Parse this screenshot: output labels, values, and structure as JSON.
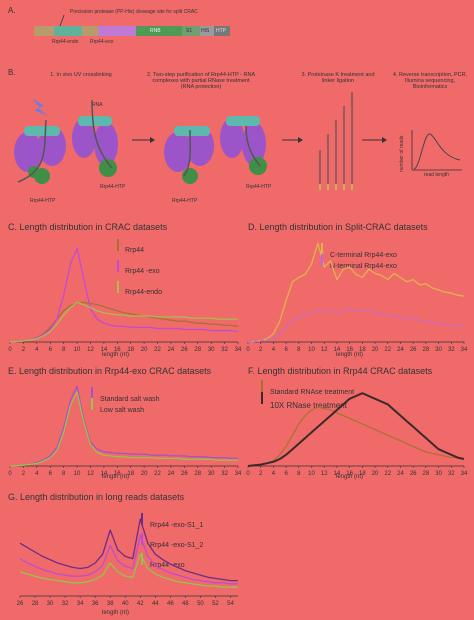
{
  "panel_a": {
    "label": "A.",
    "site_label": "Precission protease (PP-His) cleavage site for split CRAC",
    "domain_labels": [
      "Rrp44-endo",
      "Rrp44-exo",
      "RNB",
      "S1",
      "HIS",
      "HTP"
    ]
  },
  "panel_b": {
    "label": "B.",
    "steps": [
      "1. In vivo UV crosslinking",
      "2. Two-step purification of Rrp44-HTP - RNA complexes with partial RNase treatment (RNA protection)",
      "3. Proteinase K treatment and linker ligation",
      "4. Reverse transcription, PCR, Illumina sequencing, Bioinformatics"
    ],
    "rna_label": "RNA",
    "protein_label": "Rrp44-HTP",
    "uv_label": "UV",
    "axis_y": "number of reads",
    "axis_x": "read length"
  },
  "colors": {
    "background": "#f06a6a",
    "rrp44": "#a9702f",
    "rrp44_exo": "#c14bd2",
    "rrp44_endo": "#a6bf4d",
    "split_c": "#e0b24a",
    "split_n": "#b96adf",
    "standard": "#a651c9",
    "low_salt": "#98c24b",
    "ten_x": "#3c2a2a",
    "long_s1_1": "#6d2c8a",
    "long_s1_2": "#c14bd2",
    "long_exo": "#98c24b"
  },
  "chart_data": [
    {
      "id": "C",
      "type": "line",
      "title": "C. Length distribution in CRAC datasets",
      "xlabel": "length (nt)",
      "x_ticks": [
        "0",
        "2",
        "4",
        "6",
        "8",
        "10",
        "12",
        "14",
        "16",
        "18",
        "20",
        "22",
        "24",
        "26",
        "28",
        "30",
        "32",
        "34"
      ],
      "xlim": [
        0,
        34
      ],
      "x": [
        0,
        1,
        2,
        3,
        4,
        5,
        6,
        7,
        8,
        9,
        10,
        11,
        12,
        13,
        14,
        15,
        16,
        17,
        18,
        19,
        20,
        21,
        22,
        23,
        24,
        25,
        26,
        27,
        28,
        29,
        30,
        31,
        32,
        33,
        34
      ],
      "series": [
        {
          "name": "Rrp44",
          "values": [
            0,
            0.5,
            1,
            2,
            4,
            8,
            14,
            22,
            30,
            35,
            37,
            38,
            37,
            36,
            34,
            32,
            30,
            28,
            27,
            26,
            25,
            24,
            23,
            22,
            21,
            20,
            20,
            19,
            18,
            18,
            17,
            17,
            16,
            16,
            15
          ]
        },
        {
          "name": "Rrp44 -exo",
          "values": [
            0,
            0.5,
            1,
            2,
            4,
            7,
            12,
            22,
            45,
            75,
            90,
            60,
            32,
            22,
            18,
            16,
            15,
            15,
            14,
            14,
            14,
            14,
            13,
            13,
            13,
            13,
            12,
            12,
            12,
            12,
            11,
            11,
            11,
            11,
            10
          ]
        },
        {
          "name": "Rrp44-endo",
          "values": [
            0,
            0.5,
            1,
            2,
            3,
            6,
            10,
            17,
            26,
            33,
            38,
            36,
            33,
            30,
            28,
            27,
            26,
            26,
            25,
            25,
            25,
            25,
            24,
            24,
            24,
            24,
            24,
            23,
            23,
            23,
            23,
            22,
            22,
            22,
            22
          ]
        }
      ]
    },
    {
      "id": "D",
      "type": "line",
      "title": "D. Length distribution in Split-CRAC datasets",
      "xlabel": "length (nt)",
      "x_ticks": [
        "0",
        "2",
        "4",
        "6",
        "8",
        "10",
        "12",
        "14",
        "16",
        "18",
        "20",
        "22",
        "24",
        "26",
        "28",
        "30",
        "32",
        "34"
      ],
      "xlim": [
        0,
        34
      ],
      "x": [
        0,
        1,
        2,
        3,
        4,
        5,
        6,
        7,
        8,
        9,
        10,
        11,
        12,
        13,
        14,
        15,
        16,
        17,
        18,
        19,
        20,
        21,
        22,
        23,
        24,
        25,
        26,
        27,
        28,
        29,
        30,
        31,
        32,
        33,
        34
      ],
      "series": [
        {
          "name": "C-terminal Rrp44-exo",
          "values": [
            0,
            0.5,
            1,
            3,
            8,
            20,
            40,
            58,
            62,
            65,
            75,
            95,
            72,
            78,
            60,
            70,
            72,
            65,
            62,
            70,
            66,
            64,
            60,
            66,
            62,
            58,
            60,
            55,
            56,
            52,
            50,
            48,
            47,
            45,
            44
          ]
        },
        {
          "name": "N-terminal Rrp44-exo",
          "values": [
            0,
            0.5,
            1,
            2,
            4,
            8,
            14,
            20,
            24,
            26,
            28,
            30,
            29,
            31,
            28,
            30,
            32,
            30,
            29,
            30,
            28,
            27,
            26,
            25,
            24,
            23,
            22,
            21,
            20,
            19,
            18,
            17,
            16,
            16,
            15
          ]
        }
      ]
    },
    {
      "id": "E",
      "type": "line",
      "title": "E. Length distribution in Rrp44-exo CRAC datasets",
      "xlabel": "length (nt)",
      "x_ticks": [
        "0",
        "2",
        "4",
        "6",
        "8",
        "10",
        "12",
        "14",
        "16",
        "18",
        "20",
        "22",
        "24",
        "26",
        "28",
        "30",
        "32",
        "34"
      ],
      "xlim": [
        0,
        34
      ],
      "x": [
        0,
        1,
        2,
        3,
        4,
        5,
        6,
        7,
        8,
        9,
        10,
        11,
        12,
        13,
        14,
        15,
        16,
        17,
        18,
        19,
        20,
        21,
        22,
        23,
        24,
        25,
        26,
        27,
        28,
        29,
        30,
        31,
        32,
        33,
        34
      ],
      "series": [
        {
          "name": "Standard salt wash",
          "values": [
            0,
            0.5,
            1,
            2,
            4,
            7,
            12,
            22,
            45,
            78,
            95,
            55,
            28,
            20,
            17,
            16,
            15,
            15,
            14,
            14,
            14,
            13,
            13,
            13,
            12,
            12,
            12,
            11,
            11,
            11,
            10,
            10,
            10,
            9,
            9
          ]
        },
        {
          "name": "Low salt wash",
          "values": [
            0,
            0.5,
            1,
            2,
            3,
            6,
            10,
            18,
            40,
            72,
            88,
            52,
            25,
            16,
            13,
            12,
            11,
            11,
            10,
            10,
            10,
            10,
            9,
            9,
            9,
            9,
            8,
            8,
            8,
            8,
            8,
            7,
            7,
            7,
            7
          ]
        }
      ]
    },
    {
      "id": "F",
      "type": "line",
      "title": "F. Length distribution in Rrp44 CRAC datasets",
      "xlabel": "length (nt)",
      "x_ticks": [
        "0",
        "2",
        "4",
        "6",
        "8",
        "10",
        "12",
        "14",
        "16",
        "18",
        "20",
        "22",
        "24",
        "26",
        "28",
        "30",
        "32",
        "34"
      ],
      "xlim": [
        0,
        34
      ],
      "x": [
        0,
        1,
        2,
        3,
        4,
        5,
        6,
        7,
        8,
        9,
        10,
        11,
        12,
        13,
        14,
        15,
        16,
        17,
        18,
        19,
        20,
        21,
        22,
        23,
        24,
        25,
        26,
        27,
        28,
        29,
        30,
        31,
        32,
        33,
        34
      ],
      "series": [
        {
          "name": "Standard RNAse treatment",
          "values": [
            0,
            0.5,
            1,
            2,
            4,
            8,
            14,
            22,
            30,
            36,
            40,
            42,
            41,
            40,
            38,
            36,
            34,
            32,
            30,
            28,
            26,
            24,
            22,
            20,
            18,
            16,
            14,
            12,
            10,
            9,
            8,
            7,
            6,
            6,
            5
          ]
        },
        {
          "name": "10X RNase treatment",
          "values": [
            0,
            0.5,
            1,
            2,
            3,
            5,
            8,
            12,
            16,
            20,
            24,
            28,
            32,
            36,
            40,
            44,
            48,
            50,
            52,
            50,
            48,
            46,
            44,
            40,
            36,
            32,
            28,
            24,
            20,
            16,
            12,
            10,
            8,
            6,
            5
          ]
        }
      ]
    },
    {
      "id": "G",
      "type": "line",
      "title": "G. Length distribution in long reads datasets",
      "xlabel": "length (nt)",
      "x_ticks": [
        "26",
        "28",
        "30",
        "32",
        "34",
        "36",
        "38",
        "40",
        "42",
        "44",
        "46",
        "48",
        "50",
        "52",
        "54"
      ],
      "xlim": [
        26,
        55
      ],
      "x": [
        26,
        27,
        28,
        29,
        30,
        31,
        32,
        33,
        34,
        35,
        36,
        37,
        38,
        39,
        40,
        41,
        42,
        43,
        44,
        45,
        46,
        47,
        48,
        49,
        50,
        51,
        52,
        53,
        54,
        55
      ],
      "series": [
        {
          "name": "Rrp44 -exo-S1_1",
          "values": [
            48,
            44,
            40,
            36,
            33,
            30,
            28,
            26,
            25,
            26,
            30,
            38,
            60,
            42,
            36,
            34,
            70,
            48,
            38,
            33,
            29,
            26,
            23,
            21,
            19,
            17,
            16,
            15,
            14,
            14
          ]
        },
        {
          "name": "Rrp44 -exo-S1_2",
          "values": [
            34,
            30,
            27,
            24,
            22,
            20,
            19,
            18,
            18,
            19,
            22,
            28,
            46,
            32,
            27,
            25,
            55,
            36,
            28,
            24,
            21,
            19,
            17,
            15,
            14,
            13,
            12,
            12,
            11,
            11
          ]
        },
        {
          "name": "Rrp44 -exo",
          "values": [
            22,
            20,
            18,
            16,
            15,
            14,
            13,
            12,
            12,
            13,
            15,
            19,
            30,
            22,
            18,
            17,
            38,
            25,
            20,
            17,
            15,
            13,
            12,
            11,
            10,
            9,
            9,
            8,
            8,
            8
          ]
        }
      ]
    }
  ]
}
